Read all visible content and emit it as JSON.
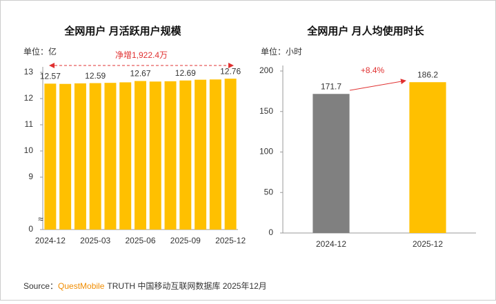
{
  "chart_data": [
    {
      "type": "bar",
      "title": "全网用户 月活跃用户规模",
      "unit_label": "单位：亿",
      "annotation": "净增1,922.4万",
      "categories": [
        "2024-12",
        null,
        null,
        "2025-03",
        null,
        null,
        "2025-06",
        null,
        null,
        "2025-09",
        null,
        null,
        "2025-12"
      ],
      "values": [
        12.57,
        12.56,
        12.58,
        12.59,
        12.6,
        12.62,
        12.67,
        12.65,
        12.66,
        12.69,
        12.72,
        12.73,
        12.76
      ],
      "color": "#ffc000",
      "ylim": [
        0,
        13
      ],
      "axis_break": [
        0,
        8
      ],
      "yticks": [
        0,
        9,
        10,
        11,
        12,
        13
      ]
    },
    {
      "type": "bar",
      "title": "全网用户 月人均使用时长",
      "unit_label": "单位：小时",
      "annotation": "+8.4%",
      "categories": [
        "2024-12",
        "2025-12"
      ],
      "values": [
        171.7,
        186.2
      ],
      "colors": [
        "#808080",
        "#ffc000"
      ],
      "ylim": [
        0,
        200
      ],
      "yticks": [
        0,
        50,
        100,
        150,
        200
      ]
    }
  ],
  "source_label": "Source：",
  "source_brand": "QuestMobile",
  "source_rest": "TRUTH 中国移动互联网数据库 2025年12月"
}
